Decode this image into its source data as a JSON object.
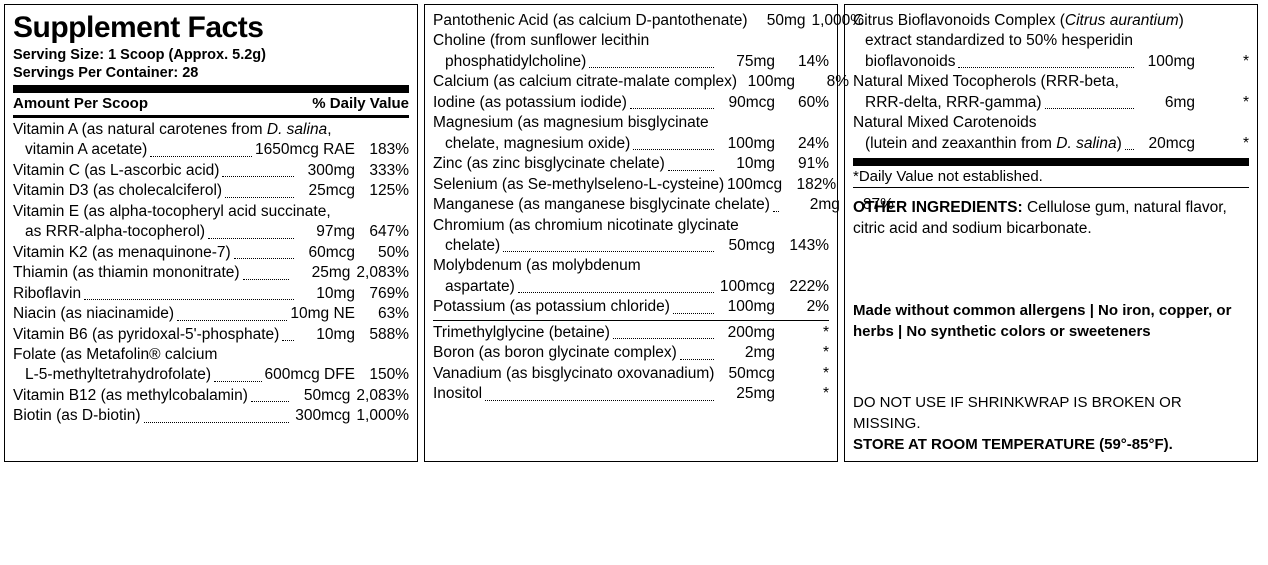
{
  "title": "Supplement Facts",
  "serving_size": "Serving Size: 1 Scoop (Approx. 5.2g)",
  "servings_per_container": "Servings Per Container: 28",
  "header_left": "Amount Per Scoop",
  "header_right": "% Daily Value",
  "col1": [
    {
      "n1": "Vitamin A (as natural carotenes from ",
      "it": "D. salina",
      "n1b": ",",
      "n2": "vitamin A acetate)",
      "amt": "1650mcg RAE",
      "dv": "183%"
    },
    {
      "n1": "Vitamin C (as L-ascorbic acid)",
      "amt": "300mg",
      "dv": "333%"
    },
    {
      "n1": "Vitamin D3 (as cholecalciferol)",
      "amt": "25mcg",
      "dv": "125%"
    },
    {
      "n1": "Vitamin E (as alpha-tocopheryl acid succinate,",
      "n2": "as RRR-alpha-tocopherol)",
      "amt": "97mg",
      "dv": "647%"
    },
    {
      "n1": "Vitamin K2 (as menaquinone-7)",
      "amt": "60mcg",
      "dv": "50%"
    },
    {
      "n1": "Thiamin (as thiamin mononitrate)",
      "amt": "25mg",
      "dv": "2,083%"
    },
    {
      "n1": "Riboflavin",
      "amt": "10mg",
      "dv": "769%"
    },
    {
      "n1": "Niacin (as niacinamide)",
      "amt": "10mg NE",
      "dv": "63%"
    },
    {
      "n1": "Vitamin B6 (as pyridoxal-5'-phosphate)",
      "amt": "10mg",
      "dv": "588%"
    },
    {
      "n1": "Folate (as Metafolin® calcium",
      "n2": "L-5-methyltetrahydrofolate)",
      "amt": "600mcg DFE",
      "dv": "150%"
    },
    {
      "n1": "Vitamin B12 (as methylcobalamin)",
      "amt": "50mcg",
      "dv": "2,083%"
    },
    {
      "n1": "Biotin (as D-biotin)",
      "amt": "300mcg",
      "dv": "1,000%"
    }
  ],
  "col2a": [
    {
      "n1": "Pantothenic Acid (as calcium D-pantothenate)",
      "amt": "50mg",
      "dv": "1,000%",
      "nodots": true
    },
    {
      "n1": "Choline (from sunflower lecithin",
      "n2": "phosphatidylcholine)",
      "amt": "75mg",
      "dv": "14%"
    },
    {
      "n1": "Calcium (as calcium citrate-malate complex)",
      "amt": "100mg",
      "dv": "8%",
      "nodots": true
    },
    {
      "n1": "Iodine (as potassium iodide)",
      "amt": "90mcg",
      "dv": "60%"
    },
    {
      "n1": "Magnesium (as magnesium bisglycinate",
      "n2": "chelate, magnesium oxide)",
      "amt": "100mg",
      "dv": "24%"
    },
    {
      "n1": "Zinc (as zinc bisglycinate chelate)",
      "amt": "10mg",
      "dv": "91%"
    },
    {
      "n1": "Selenium (as Se-methylseleno-L-cysteine)",
      "amt": "100mcg",
      "dv": "182%",
      "nodots": true
    },
    {
      "n1": "Manganese (as manganese bisglycinate chelate)",
      "amt": "2mg",
      "dv": "87%",
      "shortdots": true
    },
    {
      "n1": "Chromium (as chromium nicotinate glycinate",
      "n2": "chelate)",
      "amt": "50mcg",
      "dv": "143%"
    },
    {
      "n1": "Molybdenum (as molybdenum",
      "n2": "aspartate)",
      "amt": "100mcg",
      "dv": "222%"
    },
    {
      "n1": "Potassium (as potassium chloride)",
      "amt": "100mg",
      "dv": "2%"
    }
  ],
  "col2b": [
    {
      "n1": "Trimethylglycine (betaine)",
      "amt": "200mg",
      "dv": "*"
    },
    {
      "n1": "Boron (as boron glycinate complex)",
      "amt": "2mg",
      "dv": "*"
    },
    {
      "n1": "Vanadium (as bisglycinato oxovanadium)",
      "amt": "50mcg",
      "dv": "*",
      "nodots": true
    },
    {
      "n1": "Inositol",
      "amt": "25mg",
      "dv": "*"
    }
  ],
  "col3": [
    {
      "n1": "Citrus Bioflavonoids Complex (",
      "it": "Citrus aurantium",
      "n1b": ")",
      "n2a": "extract standardized to 50% hesperidin",
      "n2": "bioflavonoids",
      "amt": "100mg",
      "dv": "*"
    },
    {
      "n1": "Natural Mixed Tocopherols (RRR-beta,",
      "n2": "RRR-delta, RRR-gamma)",
      "amt": "6mg",
      "dv": "*"
    },
    {
      "n1": "Natural Mixed Carotenoids",
      "n2pre": "(lutein and zeaxanthin from ",
      "it2": "D. salina",
      "n2post": ")",
      "amt": "20mcg",
      "dv": "*"
    }
  ],
  "dv_note": "*Daily Value not established.",
  "other_label": "OTHER INGREDIENTS:",
  "other_text": " Cellulose gum, natural flavor, citric acid and sodium bicarbonate.",
  "made": "Made without common allergens | No iron, copper, or herbs | No synthetic colors or sweeteners",
  "store1": "DO NOT USE IF SHRINKWRAP IS BROKEN OR MISSING.",
  "store2": "STORE AT ROOM TEMPERATURE (59°-85°F)."
}
